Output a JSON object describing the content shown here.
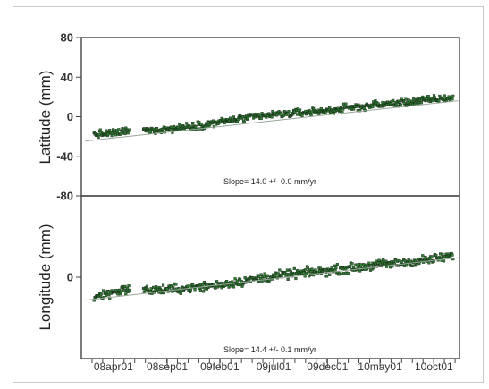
{
  "chart_data": [
    {
      "type": "scatter",
      "panel": "latitude",
      "ylabel": "Latitude (mm)",
      "ylim": [
        -80,
        80
      ],
      "yticks": [
        80,
        40,
        0,
        -40,
        -80
      ],
      "xlim": [
        2008.0,
        2010.95
      ],
      "annotation": "Slope= 14.0 +/- 0.0 mm/yr",
      "slope_mm_per_yr": 14.0,
      "trend_intercept_mm": -4.0,
      "gap": [
        2008.38,
        2008.48
      ],
      "marker_color": "#2e7d32",
      "series": [
        {
          "x": [
            2008.1,
            2008.2,
            2008.3,
            2008.37,
            2008.5,
            2008.7,
            2008.9,
            2009.1,
            2009.3,
            2009.5,
            2009.7,
            2009.9,
            2010.1,
            2010.3,
            2010.5,
            2010.7,
            2010.9
          ],
          "y": [
            -18,
            -17,
            -16,
            -14,
            -14,
            -12,
            -9,
            -5,
            -1,
            2,
            4,
            6,
            9,
            12,
            14,
            17,
            19
          ]
        }
      ]
    },
    {
      "type": "scatter",
      "panel": "longitude",
      "ylabel": "Longitude (mm)",
      "ylim": [
        -80,
        80
      ],
      "yticks": [
        0
      ],
      "xlim": [
        2008.0,
        2010.95
      ],
      "annotation": "Slope= 14.4 +/- 0.1 mm/yr",
      "slope_mm_per_yr": 14.4,
      "trend_intercept_mm": -1.5,
      "gap": [
        2008.38,
        2008.48
      ],
      "marker_color": "#2e7d32",
      "series": [
        {
          "x": [
            2008.1,
            2008.2,
            2008.3,
            2008.37,
            2008.5,
            2008.7,
            2008.9,
            2009.1,
            2009.3,
            2009.5,
            2009.7,
            2009.9,
            2010.1,
            2010.3,
            2010.5,
            2010.7,
            2010.9
          ],
          "y": [
            -20,
            -16,
            -13,
            -11,
            -13,
            -12,
            -10,
            -7,
            -3,
            1,
            4,
            6,
            9,
            12,
            14,
            17,
            21
          ]
        }
      ]
    }
  ],
  "x_axis": {
    "tick_labels": [
      "08apr01",
      "08sep01",
      "09feb01",
      "09jul01",
      "09dec01",
      "10may01",
      "10oct01"
    ],
    "tick_values": [
      2008.25,
      2008.67,
      2009.08,
      2009.5,
      2009.92,
      2010.33,
      2010.75
    ],
    "minor_tick_step": 0.0833
  }
}
